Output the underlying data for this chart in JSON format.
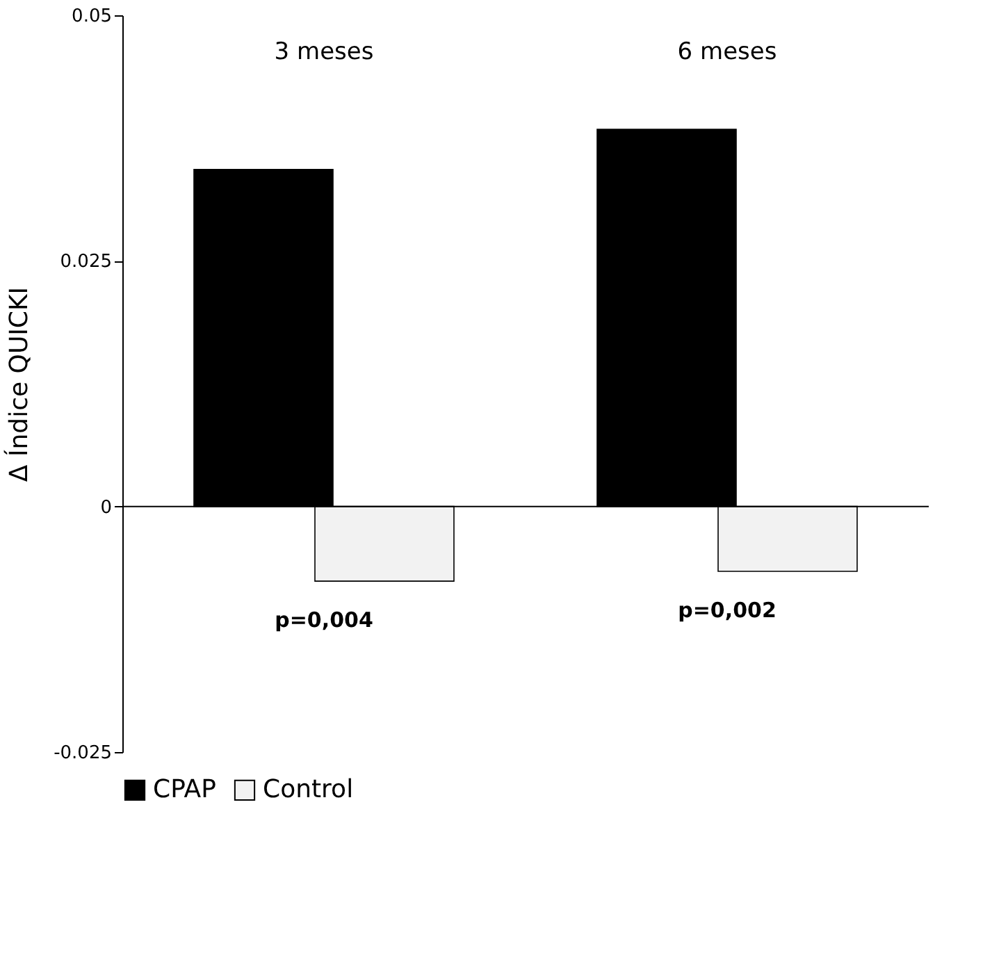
{
  "chart_data": {
    "type": "bar",
    "ylabel": "Δ Índice QUICKI",
    "categories": [
      "3 meses",
      "6 meses"
    ],
    "series": [
      {
        "name": "CPAP",
        "color": "#000000",
        "values": [
          0.0343,
          0.0384
        ]
      },
      {
        "name": "Control",
        "color": "#f2f2f2",
        "values": [
          -0.0076,
          -0.0066
        ]
      }
    ],
    "ylim": [
      -0.025,
      0.05
    ],
    "yticks": [
      -0.025,
      0,
      0.025,
      0.05
    ],
    "grid": false,
    "ref_lines": [
      {
        "axis": "y",
        "value": 0,
        "color": "#000000"
      }
    ],
    "legend": "bottom",
    "annotations": [
      "p=0,004",
      "p=0,002"
    ]
  }
}
